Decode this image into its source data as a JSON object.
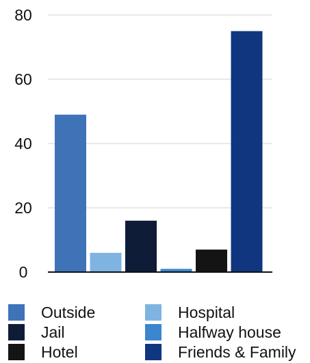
{
  "chart_data": {
    "type": "bar",
    "categories": [
      "Outside",
      "Hospital",
      "Jail",
      "Halfway house",
      "Hotel",
      "Friends & Family"
    ],
    "values": [
      49,
      6,
      16,
      1,
      7,
      75
    ],
    "colors": [
      "#3f73b8",
      "#7fb4e2",
      "#0e1c38",
      "#3a86cf",
      "#141414",
      "#103680"
    ],
    "ylim": [
      0,
      80
    ],
    "yticks": [
      0,
      20,
      40,
      60,
      80
    ],
    "grid": true,
    "legend_position": "bottom",
    "title": "",
    "xlabel": "",
    "ylabel": ""
  }
}
